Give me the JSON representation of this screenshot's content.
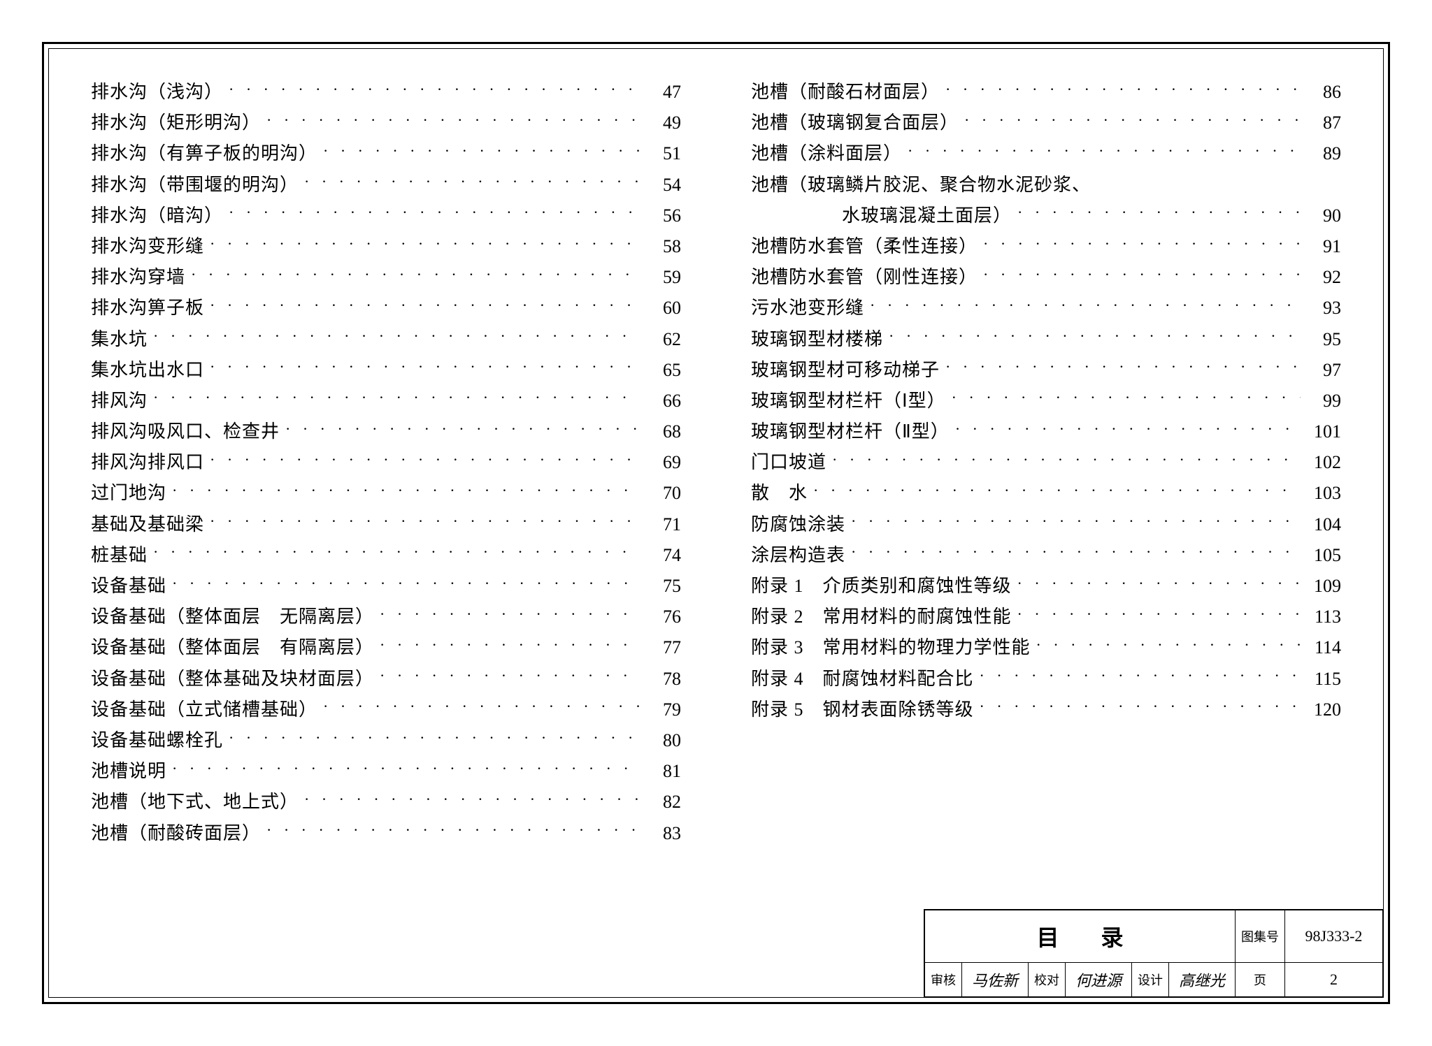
{
  "document": {
    "type": "table_of_contents",
    "font_family": "SimSun",
    "text_color": "#000000",
    "background_color": "#ffffff",
    "border_color": "#000000",
    "font_size_label": 26,
    "font_size_page": 26,
    "line_height": 1.7
  },
  "left_column": [
    {
      "label": "排水沟（浅沟）",
      "page": "47"
    },
    {
      "label": "排水沟（矩形明沟）",
      "page": "49"
    },
    {
      "label": "排水沟（有箅子板的明沟）",
      "page": "51"
    },
    {
      "label": "排水沟（带围堰的明沟）",
      "page": "54"
    },
    {
      "label": "排水沟（暗沟）",
      "page": "56"
    },
    {
      "label": "排水沟变形缝",
      "page": "58"
    },
    {
      "label": "排水沟穿墙",
      "page": "59"
    },
    {
      "label": "排水沟箅子板",
      "page": "60"
    },
    {
      "label": "集水坑",
      "page": "62"
    },
    {
      "label": "集水坑出水口",
      "page": "65"
    },
    {
      "label": "排风沟",
      "page": "66"
    },
    {
      "label": "排风沟吸风口、检查井",
      "page": "68"
    },
    {
      "label": "排风沟排风口",
      "page": "69"
    },
    {
      "label": "过门地沟",
      "page": "70"
    },
    {
      "label": "基础及基础梁",
      "page": "71"
    },
    {
      "label": "桩基础",
      "page": "74"
    },
    {
      "label": "设备基础",
      "page": "75"
    },
    {
      "label": "设备基础（整体面层　无隔离层）",
      "page": "76"
    },
    {
      "label": "设备基础（整体面层　有隔离层）",
      "page": "77"
    },
    {
      "label": "设备基础（整体基础及块材面层）",
      "page": "78"
    },
    {
      "label": "设备基础（立式储槽基础）",
      "page": "79"
    },
    {
      "label": "设备基础螺栓孔",
      "page": "80"
    },
    {
      "label": "池槽说明",
      "page": "81"
    },
    {
      "label": "池槽（地下式、地上式）",
      "page": "82"
    },
    {
      "label": "池槽（耐酸砖面层）",
      "page": "83"
    }
  ],
  "right_column": [
    {
      "label": "池槽（耐酸石材面层）",
      "page": "86"
    },
    {
      "label": "池槽（玻璃钢复合面层）",
      "page": "87"
    },
    {
      "label": "池槽（涂料面层）",
      "page": "89"
    },
    {
      "label": "池槽（玻璃鳞片胶泥、聚合物水泥砂浆、",
      "page": "",
      "no_page": true
    },
    {
      "label": "水玻璃混凝土面层）",
      "page": "90",
      "continuation": true
    },
    {
      "label": "池槽防水套管（柔性连接）",
      "page": "91"
    },
    {
      "label": "池槽防水套管（刚性连接）",
      "page": "92"
    },
    {
      "label": "污水池变形缝",
      "page": "93"
    },
    {
      "label": "玻璃钢型材楼梯",
      "page": "95"
    },
    {
      "label": "玻璃钢型材可移动梯子",
      "page": "97"
    },
    {
      "label": "玻璃钢型材栏杆（Ⅰ型）",
      "page": "99"
    },
    {
      "label": "玻璃钢型材栏杆（Ⅱ型）",
      "page": "101"
    },
    {
      "label": "门口坡道",
      "page": "102"
    },
    {
      "label": "散　水",
      "page": "103"
    },
    {
      "label": "防腐蚀涂装",
      "page": "104"
    },
    {
      "label": "涂层构造表",
      "page": "105"
    },
    {
      "label": "附录 1　介质类别和腐蚀性等级",
      "page": "109"
    },
    {
      "label": "附录 2　常用材料的耐腐蚀性能",
      "page": "113"
    },
    {
      "label": "附录 3　常用材料的物理力学性能",
      "page": "114"
    },
    {
      "label": "附录 4　耐腐蚀材料配合比",
      "page": "115"
    },
    {
      "label": "附录 5　钢材表面除锈等级",
      "page": "120"
    }
  ],
  "title_block": {
    "title": "目录",
    "atlas_label": "图集号",
    "atlas_number": "98J333-2",
    "review_label": "审核",
    "review_sig": "马佐新",
    "check_label": "校对",
    "check_sig": "何进源",
    "design_label": "设计",
    "design_sig": "高继光",
    "page_label": "页",
    "page_number": "2"
  }
}
